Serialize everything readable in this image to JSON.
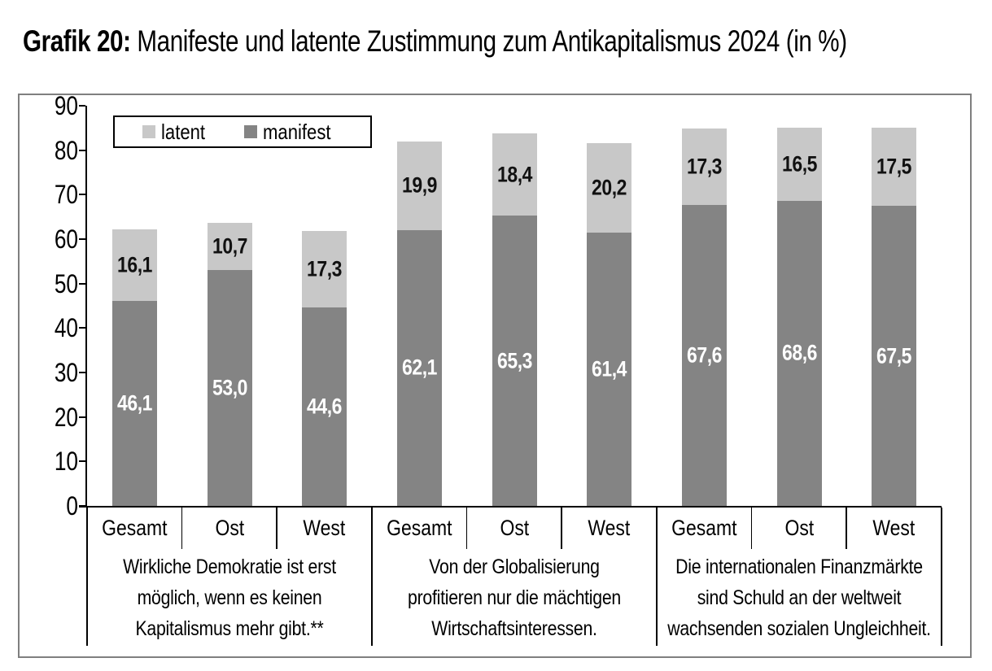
{
  "title": {
    "prefix": "Grafik 20:",
    "text": " Manifeste und latente Zustimmung zum Antikapitalismus 2024 (in %)"
  },
  "legend": {
    "items": [
      {
        "label": "latent"
      },
      {
        "label": "manifest"
      }
    ]
  },
  "colors": {
    "latent": "#c8c8c8",
    "manifest": "#848484",
    "frame_border": "#7f7f7f",
    "axis": "#000000",
    "separator": "#000000",
    "value_label_on_manifest": "#ffffff",
    "value_label_on_latent": "#111111"
  },
  "chart_data": {
    "type": "bar",
    "stacked": true,
    "title": "Grafik 20: Manifeste und latente Zustimmung zum Antikapitalismus 2024 (in %)",
    "xlabel": "",
    "ylabel": "",
    "ylim": [
      0,
      90
    ],
    "yticks": [
      0,
      10,
      20,
      30,
      40,
      50,
      60,
      70,
      80,
      90
    ],
    "grid": false,
    "legend_position": "top-left",
    "decimal_separator": ",",
    "categories": [
      "Gesamt",
      "Ost",
      "West",
      "Gesamt",
      "Ost",
      "West",
      "Gesamt",
      "Ost",
      "West"
    ],
    "series": [
      {
        "name": "manifest",
        "values": [
          46.1,
          53.0,
          44.6,
          62.1,
          65.3,
          61.4,
          67.6,
          68.6,
          67.5
        ]
      },
      {
        "name": "latent",
        "values": [
          16.1,
          10.7,
          17.3,
          19.9,
          18.4,
          20.2,
          17.3,
          16.5,
          17.5
        ]
      }
    ],
    "groups": [
      {
        "statement_lines": [
          "Wirkliche Demokratie ist erst",
          "möglich, wenn es keinen",
          "Kapitalismus mehr gibt.**"
        ]
      },
      {
        "statement_lines": [
          "Von der Globalisierung",
          "profitieren nur die mächtigen",
          "Wirtschaftsinteressen."
        ]
      },
      {
        "statement_lines": [
          "Die internationalen Finanzmärkte",
          "sind Schuld an der weltweit",
          "wachsenden sozialen Ungleichheit."
        ]
      }
    ]
  }
}
